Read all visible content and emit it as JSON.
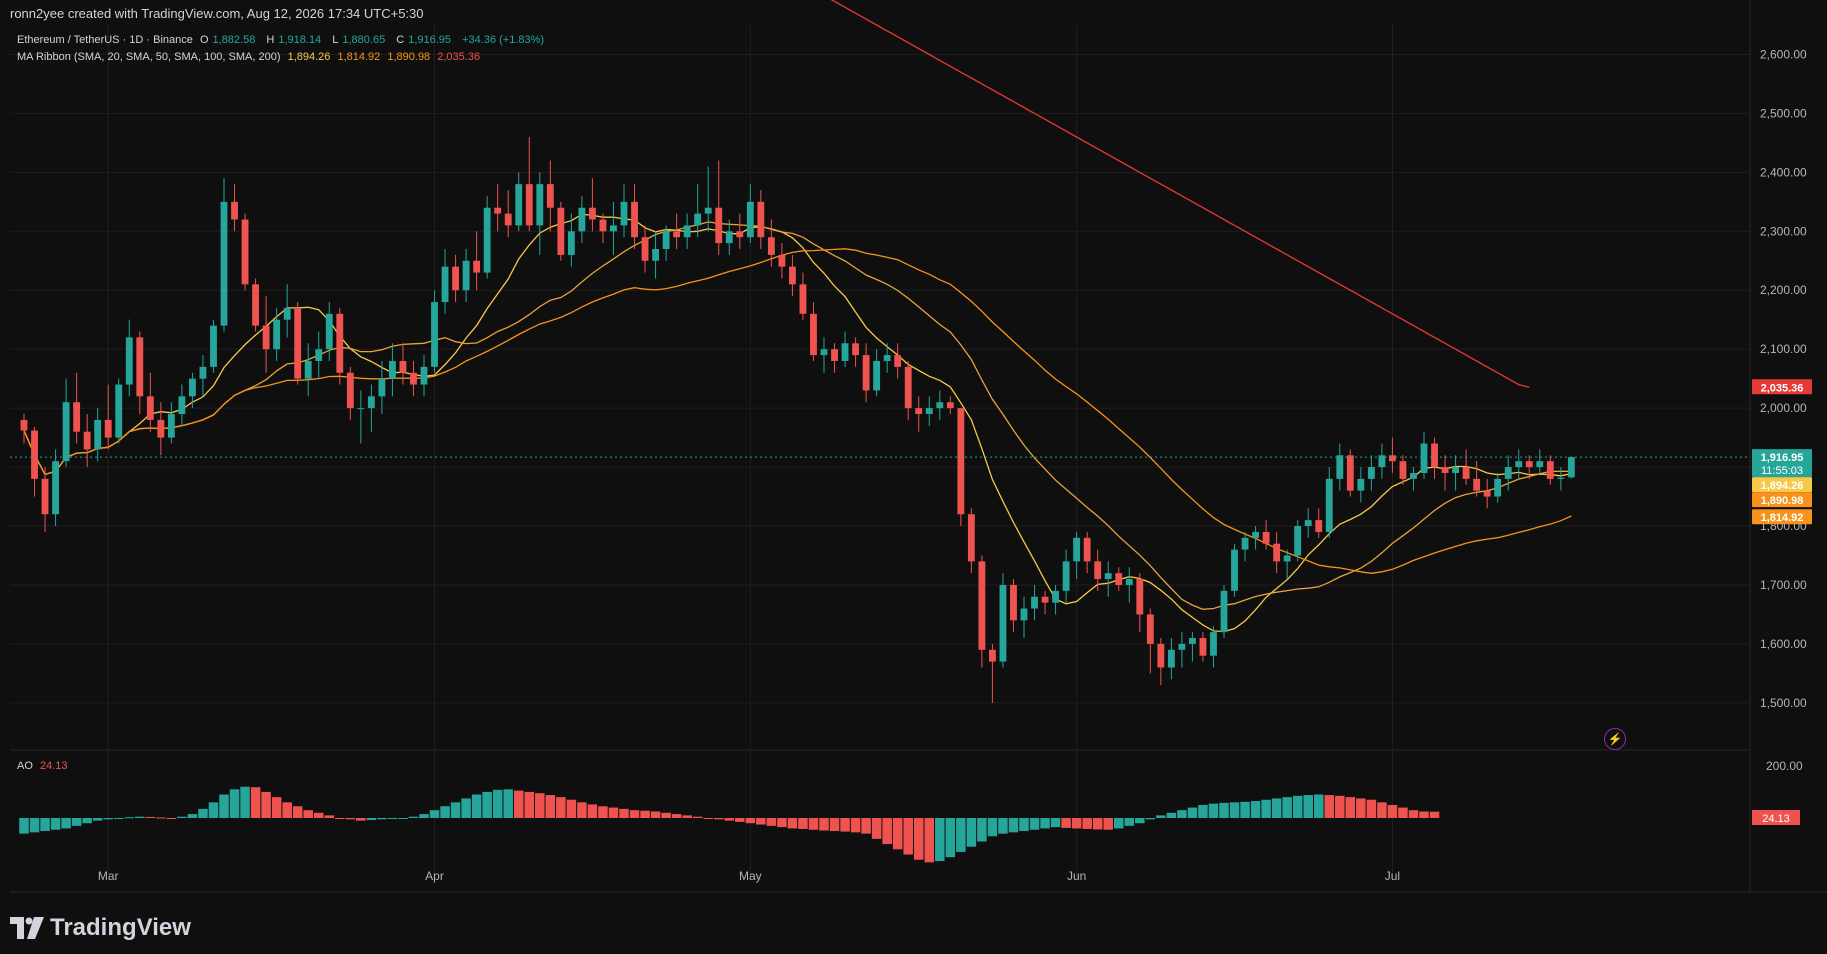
{
  "header": {
    "created_by": "ronn2yee created with TradingView.com, Aug 12, 2026 17:34 UTC+5:30"
  },
  "legend": {
    "symbol": "Ethereum / TetherUS · 1D · Binance",
    "o_label": "O",
    "o": "1,882.58",
    "h_label": "H",
    "h": "1,918.14",
    "l_label": "L",
    "l": "1,880.65",
    "c_label": "C",
    "c": "1,916.95",
    "change": "+34.36 (+1.83%)",
    "ma_label": "MA Ribbon (SMA, 20, SMA, 50, SMA, 100, SMA, 200)",
    "ma20": "1,894.26",
    "ma50": "1,814.92",
    "ma100": "1,890.98",
    "ma200": "2,035.36"
  },
  "ao": {
    "label": "AO",
    "value": "24.13"
  },
  "logo": {
    "text": "TradingView"
  },
  "colors": {
    "up": "#26a69a",
    "down": "#ef5350",
    "ma20": "#f7c948",
    "ma50": "#e8a33a",
    "ma100": "#f7931a",
    "ma200": "#e53935",
    "grid": "#1f1f1f",
    "bg": "#0f0f0f"
  },
  "chart_data": {
    "type": "candlestick",
    "title": "Ethereum / TetherUS · 1D · Binance",
    "ylim": [
      1420,
      2650
    ],
    "y_ticks": [
      "2,600.00",
      "2,500.00",
      "2,400.00",
      "2,300.00",
      "2,200.00",
      "2,100.00",
      "2,000.00",
      "1,900.00",
      "1,800.00",
      "1,700.00",
      "1,600.00",
      "1,500.00"
    ],
    "y_tick_values": [
      2600,
      2500,
      2400,
      2300,
      2200,
      2100,
      2000,
      1900,
      1800,
      1700,
      1600,
      1500
    ],
    "x_labels": [
      {
        "label": "Mar",
        "index": 8
      },
      {
        "label": "Apr",
        "index": 39
      },
      {
        "label": "May",
        "index": 69
      },
      {
        "label": "Jun",
        "index": 100
      },
      {
        "label": "Jul",
        "index": 130
      }
    ],
    "price_labels": [
      {
        "text": "2,035.36",
        "value": 2035.36,
        "color": "#e53935"
      },
      {
        "text": "1,916.95",
        "value": 1916.95,
        "color": "#26a69a",
        "sub": "11:55:03"
      },
      {
        "text": "1,894.26",
        "value": 1894.26,
        "color": "#f7c948"
      },
      {
        "text": "1,890.98",
        "value": 1890.98,
        "color": "#f7931a"
      },
      {
        "text": "1,814.92",
        "value": 1814.92,
        "color": "#f7931a"
      }
    ],
    "candles": [
      [
        1980,
        1990,
        1940,
        1962
      ],
      [
        1962,
        1968,
        1850,
        1880
      ],
      [
        1880,
        1900,
        1790,
        1820
      ],
      [
        1820,
        1930,
        1800,
        1910
      ],
      [
        1910,
        2050,
        1900,
        2010
      ],
      [
        2010,
        2060,
        1940,
        1960
      ],
      [
        1960,
        1990,
        1900,
        1930
      ],
      [
        1930,
        2000,
        1910,
        1980
      ],
      [
        1980,
        2040,
        1930,
        1950
      ],
      [
        1950,
        2050,
        1940,
        2040
      ],
      [
        2040,
        2150,
        2020,
        2120
      ],
      [
        2120,
        2130,
        1990,
        2020
      ],
      [
        2020,
        2060,
        1960,
        1980
      ],
      [
        1980,
        2010,
        1920,
        1950
      ],
      [
        1950,
        2010,
        1940,
        1990
      ],
      [
        1990,
        2040,
        1970,
        2020
      ],
      [
        2020,
        2060,
        2000,
        2050
      ],
      [
        2050,
        2090,
        2020,
        2070
      ],
      [
        2070,
        2150,
        2060,
        2140
      ],
      [
        2140,
        2390,
        2130,
        2350
      ],
      [
        2350,
        2380,
        2300,
        2320
      ],
      [
        2320,
        2330,
        2200,
        2210
      ],
      [
        2210,
        2220,
        2130,
        2140
      ],
      [
        2140,
        2190,
        2060,
        2100
      ],
      [
        2100,
        2170,
        2080,
        2150
      ],
      [
        2150,
        2210,
        2120,
        2170
      ],
      [
        2170,
        2180,
        2040,
        2050
      ],
      [
        2050,
        2110,
        2020,
        2080
      ],
      [
        2080,
        2130,
        2050,
        2100
      ],
      [
        2100,
        2180,
        2080,
        2160
      ],
      [
        2160,
        2170,
        2040,
        2060
      ],
      [
        2060,
        2070,
        1980,
        2000
      ],
      [
        2000,
        2030,
        1940,
        2000
      ],
      [
        2000,
        2040,
        1960,
        2020
      ],
      [
        2020,
        2080,
        1990,
        2050
      ],
      [
        2050,
        2110,
        2020,
        2080
      ],
      [
        2080,
        2110,
        2040,
        2060
      ],
      [
        2060,
        2080,
        2020,
        2040
      ],
      [
        2040,
        2090,
        2020,
        2070
      ],
      [
        2070,
        2200,
        2060,
        2180
      ],
      [
        2180,
        2270,
        2160,
        2240
      ],
      [
        2240,
        2260,
        2180,
        2200
      ],
      [
        2200,
        2270,
        2180,
        2250
      ],
      [
        2250,
        2300,
        2200,
        2230
      ],
      [
        2230,
        2360,
        2220,
        2340
      ],
      [
        2340,
        2380,
        2300,
        2330
      ],
      [
        2330,
        2370,
        2290,
        2310
      ],
      [
        2310,
        2400,
        2300,
        2380
      ],
      [
        2380,
        2460,
        2300,
        2310
      ],
      [
        2310,
        2400,
        2260,
        2380
      ],
      [
        2380,
        2420,
        2300,
        2340
      ],
      [
        2340,
        2350,
        2250,
        2260
      ],
      [
        2260,
        2330,
        2240,
        2300
      ],
      [
        2300,
        2360,
        2280,
        2340
      ],
      [
        2340,
        2390,
        2300,
        2320
      ],
      [
        2320,
        2330,
        2280,
        2300
      ],
      [
        2300,
        2350,
        2260,
        2310
      ],
      [
        2310,
        2380,
        2290,
        2350
      ],
      [
        2350,
        2380,
        2270,
        2290
      ],
      [
        2290,
        2310,
        2230,
        2250
      ],
      [
        2250,
        2300,
        2220,
        2270
      ],
      [
        2270,
        2310,
        2250,
        2300
      ],
      [
        2300,
        2330,
        2270,
        2290
      ],
      [
        2290,
        2330,
        2270,
        2310
      ],
      [
        2310,
        2380,
        2290,
        2330
      ],
      [
        2330,
        2410,
        2300,
        2340
      ],
      [
        2340,
        2420,
        2260,
        2280
      ],
      [
        2280,
        2320,
        2260,
        2300
      ],
      [
        2300,
        2330,
        2270,
        2290
      ],
      [
        2290,
        2380,
        2280,
        2350
      ],
      [
        2350,
        2370,
        2270,
        2290
      ],
      [
        2290,
        2320,
        2240,
        2260
      ],
      [
        2260,
        2280,
        2220,
        2240
      ],
      [
        2240,
        2260,
        2190,
        2210
      ],
      [
        2210,
        2230,
        2150,
        2160
      ],
      [
        2160,
        2180,
        2080,
        2090
      ],
      [
        2090,
        2120,
        2060,
        2100
      ],
      [
        2100,
        2110,
        2060,
        2080
      ],
      [
        2080,
        2130,
        2070,
        2110
      ],
      [
        2110,
        2120,
        2070,
        2090
      ],
      [
        2090,
        2110,
        2010,
        2030
      ],
      [
        2030,
        2100,
        2020,
        2080
      ],
      [
        2080,
        2110,
        2060,
        2090
      ],
      [
        2090,
        2110,
        2050,
        2070
      ],
      [
        2070,
        2080,
        1980,
        2000
      ],
      [
        2000,
        2020,
        1960,
        1990
      ],
      [
        1990,
        2020,
        1970,
        2000
      ],
      [
        2000,
        2030,
        1980,
        2010
      ],
      [
        2010,
        2020,
        1990,
        2000
      ],
      [
        2000,
        2000,
        1800,
        1820
      ],
      [
        1820,
        1830,
        1720,
        1740
      ],
      [
        1740,
        1750,
        1560,
        1590
      ],
      [
        1590,
        1600,
        1500,
        1570
      ],
      [
        1570,
        1720,
        1560,
        1700
      ],
      [
        1700,
        1710,
        1620,
        1640
      ],
      [
        1640,
        1680,
        1610,
        1660
      ],
      [
        1660,
        1700,
        1640,
        1680
      ],
      [
        1680,
        1690,
        1650,
        1670
      ],
      [
        1670,
        1700,
        1650,
        1690
      ],
      [
        1690,
        1760,
        1670,
        1740
      ],
      [
        1740,
        1790,
        1710,
        1780
      ],
      [
        1780,
        1790,
        1720,
        1740
      ],
      [
        1740,
        1760,
        1690,
        1710
      ],
      [
        1710,
        1740,
        1680,
        1720
      ],
      [
        1720,
        1730,
        1690,
        1700
      ],
      [
        1700,
        1730,
        1670,
        1710
      ],
      [
        1710,
        1720,
        1620,
        1650
      ],
      [
        1650,
        1660,
        1550,
        1600
      ],
      [
        1600,
        1610,
        1530,
        1560
      ],
      [
        1560,
        1610,
        1540,
        1590
      ],
      [
        1590,
        1620,
        1560,
        1600
      ],
      [
        1600,
        1620,
        1570,
        1610
      ],
      [
        1610,
        1620,
        1570,
        1580
      ],
      [
        1580,
        1630,
        1560,
        1620
      ],
      [
        1620,
        1700,
        1610,
        1690
      ],
      [
        1690,
        1770,
        1680,
        1760
      ],
      [
        1760,
        1790,
        1740,
        1780
      ],
      [
        1780,
        1800,
        1760,
        1790
      ],
      [
        1790,
        1810,
        1760,
        1770
      ],
      [
        1770,
        1790,
        1720,
        1740
      ],
      [
        1740,
        1760,
        1710,
        1750
      ],
      [
        1750,
        1810,
        1740,
        1800
      ],
      [
        1800,
        1830,
        1780,
        1810
      ],
      [
        1810,
        1830,
        1780,
        1790
      ],
      [
        1790,
        1900,
        1780,
        1880
      ],
      [
        1880,
        1940,
        1860,
        1920
      ],
      [
        1920,
        1930,
        1850,
        1860
      ],
      [
        1860,
        1900,
        1840,
        1880
      ],
      [
        1880,
        1920,
        1860,
        1900
      ],
      [
        1900,
        1940,
        1880,
        1920
      ],
      [
        1920,
        1950,
        1890,
        1910
      ],
      [
        1910,
        1920,
        1870,
        1880
      ],
      [
        1880,
        1900,
        1860,
        1890
      ],
      [
        1890,
        1960,
        1880,
        1940
      ],
      [
        1940,
        1950,
        1880,
        1900
      ],
      [
        1900,
        1920,
        1860,
        1890
      ],
      [
        1890,
        1920,
        1860,
        1900
      ],
      [
        1900,
        1930,
        1870,
        1880
      ],
      [
        1880,
        1910,
        1850,
        1860
      ],
      [
        1860,
        1880,
        1830,
        1850
      ],
      [
        1850,
        1890,
        1840,
        1880
      ],
      [
        1880,
        1920,
        1860,
        1900
      ],
      [
        1900,
        1930,
        1880,
        1910
      ],
      [
        1910,
        1920,
        1880,
        1900
      ],
      [
        1900,
        1930,
        1890,
        1910
      ],
      [
        1910,
        1920,
        1870,
        1880
      ],
      [
        1880,
        1900,
        1860,
        1882
      ],
      [
        1882.58,
        1918.14,
        1880.65,
        1916.95
      ]
    ],
    "ma200": [
      2700,
      2690,
      2680,
      2670,
      2660,
      2650,
      2640,
      2630,
      2620,
      2610,
      2600,
      2590,
      2580,
      2570,
      2560,
      2550,
      2540,
      2530,
      2520,
      2510,
      2500,
      2490,
      2480,
      2470,
      2460,
      2450,
      2440,
      2430,
      2420,
      2410,
      2400,
      2390,
      2380,
      2370,
      2360,
      2350,
      2340,
      2330,
      2320,
      2310,
      2300,
      2290,
      2280,
      2270,
      2260,
      2250,
      2240,
      2230,
      2220,
      2210,
      2200,
      2190,
      2180,
      2170,
      2160,
      2150,
      2140,
      2130,
      2120,
      2110,
      2100,
      2090,
      2080,
      2070,
      2060,
      2050,
      2040,
      2035.36
    ],
    "ma200_start": 76,
    "ao_values": [
      -60,
      -55,
      -50,
      -45,
      -40,
      -30,
      -20,
      -10,
      -5,
      0,
      3,
      5,
      4,
      2,
      0,
      5,
      15,
      35,
      60,
      90,
      110,
      120,
      118,
      100,
      80,
      60,
      45,
      30,
      20,
      10,
      0,
      -5,
      -10,
      -8,
      -5,
      -3,
      0,
      5,
      15,
      30,
      45,
      60,
      75,
      90,
      100,
      108,
      110,
      105,
      100,
      95,
      88,
      80,
      70,
      60,
      52,
      45,
      40,
      35,
      30,
      28,
      25,
      20,
      15,
      10,
      5,
      0,
      -5,
      -10,
      -15,
      -20,
      -25,
      -30,
      -35,
      -40,
      -42,
      -45,
      -48,
      -50,
      -52,
      -55,
      -60,
      -80,
      -100,
      -120,
      -140,
      -160,
      -170,
      -165,
      -150,
      -130,
      -110,
      -90,
      -70,
      -60,
      -55,
      -50,
      -45,
      -40,
      -35,
      -38,
      -40,
      -42,
      -44,
      -45,
      -40,
      -30,
      -20,
      -5,
      10,
      20,
      30,
      40,
      50,
      55,
      58,
      60,
      62,
      65,
      70,
      75,
      80,
      85,
      88,
      90,
      88,
      85,
      80,
      75,
      70,
      60,
      50,
      40,
      30,
      25,
      24.13
    ],
    "ao_ylim": [
      -230,
      230
    ]
  }
}
